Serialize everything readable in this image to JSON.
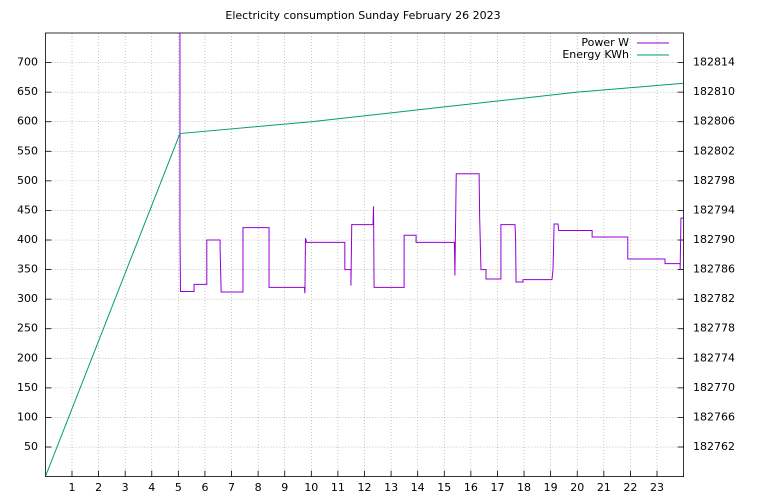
{
  "chart_data": {
    "type": "line",
    "title": "Electricity consumption Sunday February 26 2023",
    "xlim": [
      0,
      24
    ],
    "xticks": [
      1,
      2,
      3,
      4,
      5,
      6,
      7,
      8,
      9,
      10,
      11,
      12,
      13,
      14,
      15,
      16,
      17,
      18,
      19,
      20,
      21,
      22,
      23
    ],
    "ylim": [
      0,
      750
    ],
    "yticks": [
      50,
      100,
      150,
      200,
      250,
      300,
      350,
      400,
      450,
      500,
      550,
      600,
      650,
      700
    ],
    "y2lim": [
      182758,
      182818
    ],
    "y2ticks": [
      182762,
      182766,
      182770,
      182774,
      182778,
      182782,
      182786,
      182790,
      182794,
      182798,
      182802,
      182806,
      182810,
      182814
    ],
    "grid": true,
    "legend": "top-right",
    "series": [
      {
        "name": "Power W",
        "color": "#9400d3",
        "x": [
          5.06,
          5.06,
          5.08,
          5.59,
          5.59,
          6.07,
          6.07,
          6.57,
          6.57,
          6.61,
          7.43,
          7.43,
          8.41,
          8.41,
          9.74,
          9.76,
          9.78,
          9.82,
          11.26,
          11.26,
          11.49,
          11.49,
          11.52,
          12.32,
          12.34,
          12.36,
          13.49,
          13.49,
          13.94,
          13.94,
          15.38,
          15.4,
          15.42,
          15.45,
          16.31,
          16.33,
          16.38,
          16.57,
          16.57,
          17.13,
          17.13,
          17.66,
          17.68,
          17.7,
          17.96,
          17.96,
          19.05,
          19.09,
          19.13,
          19.28,
          19.3,
          20.56,
          20.56,
          21.9,
          21.9,
          23.3,
          23.3,
          23.87,
          23.87,
          23.9,
          24
        ],
        "values": [
          750,
          420,
          313,
          313,
          325,
          325,
          400,
          400,
          385,
          312,
          312,
          421,
          421,
          320,
          320,
          310,
          403,
          396,
          396,
          350,
          350,
          323,
          426,
          426,
          457,
          320,
          320,
          408,
          408,
          396,
          396,
          340,
          410,
          512,
          512,
          440,
          350,
          350,
          334,
          334,
          426,
          426,
          405,
          329,
          329,
          333,
          333,
          350,
          427,
          427,
          416,
          416,
          405,
          405,
          368,
          368,
          360,
          360,
          349,
          437,
          437
        ]
      },
      {
        "name": "Energy KWh",
        "color": "#009e73",
        "axis": "y2",
        "x": [
          0,
          5.06,
          10,
          15,
          20,
          24
        ],
        "values": [
          182758,
          182804.4,
          182806,
          182808,
          182810,
          182811.2
        ]
      }
    ]
  }
}
